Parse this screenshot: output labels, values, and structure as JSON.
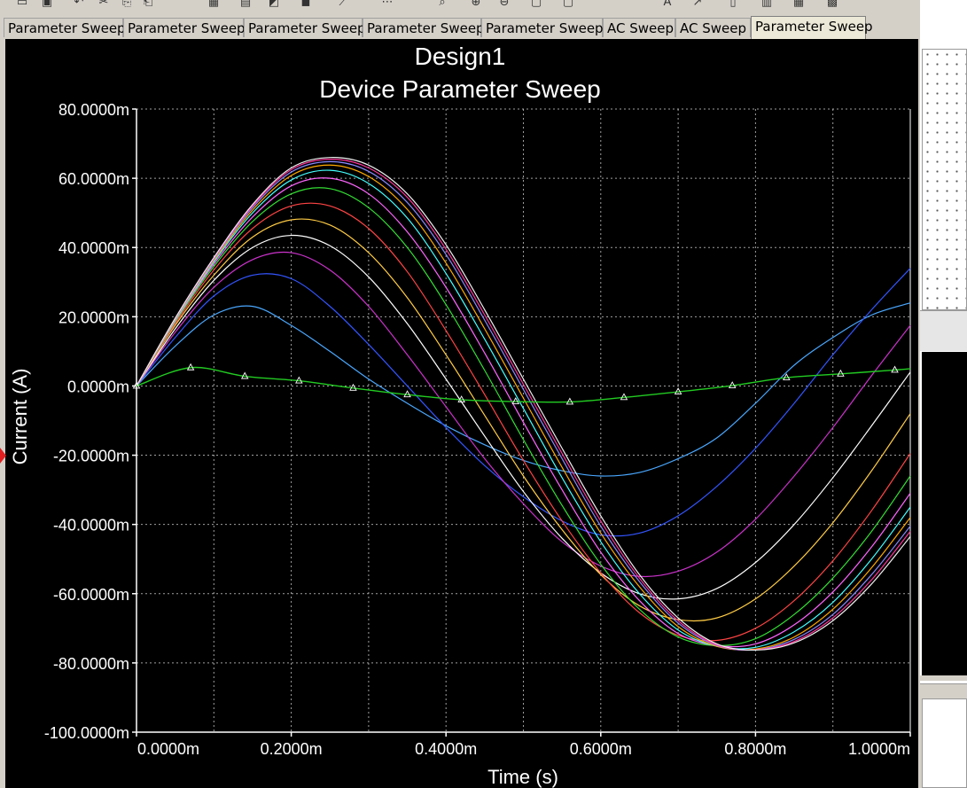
{
  "tabs": [
    {
      "label": "Parameter Sweep",
      "active": false
    },
    {
      "label": "Parameter Sweep",
      "active": false
    },
    {
      "label": "Parameter Sweep",
      "active": false
    },
    {
      "label": "Parameter Sweep",
      "active": false
    },
    {
      "label": "Parameter Sweep",
      "active": false
    },
    {
      "label": "AC Sweep",
      "active": false
    },
    {
      "label": "AC Sweep",
      "active": false
    },
    {
      "label": "Parameter Sweep",
      "active": true
    }
  ],
  "toolbar_icons": [
    "open-icon",
    "save-icon",
    "undo-icon",
    "cut-icon",
    "copy-icon",
    "paste-icon",
    "grid-icon",
    "legend-icon",
    "cursor-icon",
    "select-icon",
    "trace-icon",
    "markers-icon",
    "zoom-icon",
    "zoom-in-icon",
    "zoom-out-icon",
    "export-icon",
    "print-icon",
    "text-icon",
    "properties-icon",
    "overlay-icon",
    "ptr-icon",
    "table-icon",
    "chart-icon"
  ],
  "colors": {
    "plot_bg": "#000000",
    "grid": "#c8c8c8",
    "text": "#ffffff"
  },
  "chart_data": {
    "type": "line",
    "title": "Design1",
    "subtitle": "Device Parameter Sweep",
    "xlabel": "Time (s)",
    "ylabel": "Current (A)",
    "xlim": [
      0,
      1.0
    ],
    "ylim": [
      -100,
      80
    ],
    "x_unit_scale": "milliseconds",
    "y_unit_scale": "milliamps",
    "xticks": [
      0,
      0.2,
      0.4,
      0.6,
      0.8,
      1.0
    ],
    "xtick_labels": [
      "0.0000m",
      "0.2000m",
      "0.4000m",
      "0.6000m",
      "0.8000m",
      "1.0000m"
    ],
    "yticks": [
      80,
      60,
      40,
      20,
      0,
      -20,
      -40,
      -60,
      -80,
      -100
    ],
    "ytick_labels": [
      "80.0000m",
      "60.0000m",
      "40.0000m",
      "20.0000m",
      "0.0000m",
      "-20.0000m",
      "-40.0000m",
      "-60.0000m",
      "-80.0000m",
      "-100.0000m"
    ],
    "grid": true,
    "grid_style": "dotted",
    "marker_series": {
      "color": "#22cc22",
      "marker": "triangle",
      "x": [
        0,
        0.07,
        0.14,
        0.21,
        0.28,
        0.35,
        0.42,
        0.49,
        0.56,
        0.63,
        0.7,
        0.77,
        0.84,
        0.91,
        0.98,
        1.0
      ],
      "y": [
        0,
        5.3,
        2.8,
        1.5,
        -0.6,
        -2.5,
        -4.0,
        -4.5,
        -4.6,
        -3.3,
        -1.7,
        0.1,
        2.4,
        3.5,
        4.6,
        5.0
      ]
    },
    "series": [
      {
        "color": "#4aa8ff",
        "x": [
          0,
          0.05,
          0.1,
          0.15,
          0.2,
          0.25,
          0.3,
          0.35,
          0.4,
          0.45,
          0.5,
          0.55,
          0.6,
          0.65,
          0.7,
          0.75,
          0.8,
          0.85,
          0.9,
          0.95,
          1.0
        ],
        "y": [
          0,
          11.5,
          20.5,
          23.0,
          17.5,
          10.0,
          2.0,
          -5.0,
          -11.5,
          -17.0,
          -21.5,
          -24.5,
          -26.0,
          -25.0,
          -21.0,
          -15.0,
          -5.0,
          6.0,
          14.0,
          20.5,
          24.0
        ]
      },
      {
        "color": "#3355ff",
        "x": [
          0,
          0.05,
          0.1,
          0.15,
          0.2,
          0.25,
          0.3,
          0.35,
          0.4,
          0.45,
          0.5,
          0.55,
          0.6,
          0.65,
          0.7,
          0.75,
          0.8,
          0.85,
          0.9,
          0.95,
          1.0
        ],
        "y": [
          0,
          14.0,
          26.0,
          32.0,
          31.0,
          23.0,
          12.0,
          0,
          -12.0,
          -23.0,
          -32.0,
          -39.0,
          -43.0,
          -42.5,
          -37.5,
          -29.0,
          -18.0,
          -5.0,
          9.0,
          22.0,
          34.0
        ]
      },
      {
        "color": "#cc33cc",
        "x": [
          0,
          0.05,
          0.1,
          0.15,
          0.2,
          0.25,
          0.3,
          0.35,
          0.4,
          0.45,
          0.5,
          0.55,
          0.6,
          0.65,
          0.7,
          0.75,
          0.8,
          0.85,
          0.9,
          0.95,
          1.0
        ],
        "y": [
          0,
          15.5,
          28.5,
          36.5,
          38.5,
          33.5,
          23.0,
          9.0,
          -6.0,
          -21.0,
          -34.0,
          -45.0,
          -52.0,
          -55.0,
          -53.5,
          -48.0,
          -38.5,
          -26.0,
          -12.0,
          3.0,
          17.5
        ]
      },
      {
        "color": "#ffffff",
        "x": [
          0,
          0.05,
          0.1,
          0.15,
          0.2,
          0.25,
          0.3,
          0.35,
          0.4,
          0.45,
          0.5,
          0.55,
          0.6,
          0.65,
          0.7,
          0.75,
          0.8,
          0.85,
          0.9,
          0.95,
          1.0
        ],
        "y": [
          0,
          16.5,
          30.5,
          40.0,
          43.5,
          40.5,
          31.5,
          18.0,
          2.0,
          -14.5,
          -30.5,
          -44.0,
          -54.0,
          -60.0,
          -61.5,
          -58.5,
          -51.0,
          -40.0,
          -26.5,
          -11.5,
          4.0
        ]
      },
      {
        "color": "#ffcc44",
        "x": [
          0,
          0.05,
          0.1,
          0.15,
          0.2,
          0.25,
          0.3,
          0.35,
          0.4,
          0.45,
          0.5,
          0.55,
          0.6,
          0.65,
          0.7,
          0.75,
          0.8,
          0.85,
          0.9,
          0.95,
          1.0
        ],
        "y": [
          0,
          17.5,
          32.0,
          43.0,
          48.0,
          46.5,
          38.5,
          25.5,
          9.0,
          -8.5,
          -26.0,
          -41.5,
          -54.5,
          -63.5,
          -67.5,
          -67.0,
          -61.5,
          -52.0,
          -39.5,
          -24.5,
          -8.0
        ]
      },
      {
        "color": "#ff4444",
        "x": [
          0,
          0.05,
          0.1,
          0.15,
          0.2,
          0.25,
          0.3,
          0.35,
          0.4,
          0.45,
          0.5,
          0.55,
          0.6,
          0.65,
          0.7,
          0.75,
          0.8,
          0.85,
          0.9,
          0.95,
          1.0
        ],
        "y": [
          0,
          18.0,
          33.5,
          45.5,
          52.0,
          52.0,
          45.5,
          33.0,
          16.0,
          -2.5,
          -21.5,
          -39.0,
          -54.0,
          -65.5,
          -72.0,
          -73.5,
          -70.0,
          -62.0,
          -50.5,
          -36.0,
          -19.5
        ]
      },
      {
        "color": "#33dd33",
        "x": [
          0,
          0.05,
          0.1,
          0.15,
          0.2,
          0.25,
          0.3,
          0.35,
          0.4,
          0.45,
          0.5,
          0.55,
          0.6,
          0.65,
          0.7,
          0.75,
          0.8,
          0.85,
          0.9,
          0.95,
          1.0
        ],
        "y": [
          0,
          18.5,
          34.5,
          47.5,
          55.5,
          57.0,
          51.5,
          40.0,
          23.5,
          4.5,
          -15.5,
          -34.5,
          -51.5,
          -64.5,
          -72.5,
          -75.0,
          -73.0,
          -66.0,
          -55.5,
          -42.0,
          -26.0
        ]
      },
      {
        "color": "#ff66ff",
        "x": [
          0,
          0.05,
          0.1,
          0.15,
          0.2,
          0.25,
          0.3,
          0.35,
          0.4,
          0.45,
          0.5,
          0.55,
          0.6,
          0.65,
          0.7,
          0.75,
          0.8,
          0.85,
          0.9,
          0.95,
          1.0
        ],
        "y": [
          0,
          18.8,
          35.2,
          48.8,
          57.8,
          60.0,
          55.5,
          44.5,
          28.5,
          9.5,
          -10.5,
          -30.0,
          -48.0,
          -62.0,
          -71.5,
          -75.0,
          -74.5,
          -69.0,
          -59.5,
          -46.5,
          -31.0
        ]
      },
      {
        "color": "#44ffff",
        "x": [
          0,
          0.05,
          0.1,
          0.15,
          0.2,
          0.25,
          0.3,
          0.35,
          0.4,
          0.45,
          0.5,
          0.55,
          0.6,
          0.65,
          0.7,
          0.75,
          0.8,
          0.85,
          0.9,
          0.95,
          1.0
        ],
        "y": [
          0,
          19.0,
          35.8,
          50.0,
          59.5,
          62.3,
          58.5,
          48.5,
          32.5,
          13.5,
          -6.5,
          -26.5,
          -45.0,
          -60.0,
          -70.5,
          -75.2,
          -75.5,
          -71.0,
          -62.5,
          -50.0,
          -35.0
        ]
      },
      {
        "color": "#ffaa00",
        "x": [
          0,
          0.05,
          0.1,
          0.15,
          0.2,
          0.25,
          0.3,
          0.35,
          0.4,
          0.45,
          0.5,
          0.55,
          0.6,
          0.65,
          0.7,
          0.75,
          0.8,
          0.85,
          0.9,
          0.95,
          1.0
        ],
        "y": [
          0,
          19.2,
          36.2,
          50.8,
          60.8,
          63.8,
          60.5,
          51.0,
          35.5,
          16.5,
          -3.5,
          -23.5,
          -42.5,
          -58.0,
          -69.5,
          -75.2,
          -76.0,
          -72.5,
          -64.5,
          -52.5,
          -38.0
        ]
      },
      {
        "color": "#8888ff",
        "x": [
          0,
          0.05,
          0.1,
          0.15,
          0.2,
          0.25,
          0.3,
          0.35,
          0.4,
          0.45,
          0.5,
          0.55,
          0.6,
          0.65,
          0.7,
          0.75,
          0.8,
          0.85,
          0.9,
          0.95,
          1.0
        ],
        "y": [
          0,
          19.4,
          36.6,
          51.5,
          61.8,
          64.8,
          62.0,
          53.0,
          38.0,
          19.0,
          -1.0,
          -21.0,
          -40.5,
          -56.5,
          -68.5,
          -75.0,
          -76.2,
          -73.2,
          -66.0,
          -54.5,
          -40.5
        ]
      },
      {
        "color": "#ff3399",
        "x": [
          0,
          0.05,
          0.1,
          0.15,
          0.2,
          0.25,
          0.3,
          0.35,
          0.4,
          0.45,
          0.5,
          0.55,
          0.6,
          0.65,
          0.7,
          0.75,
          0.8,
          0.85,
          0.9,
          0.95,
          1.0
        ],
        "y": [
          0,
          19.5,
          36.9,
          52.0,
          62.5,
          65.5,
          63.0,
          54.5,
          39.5,
          20.5,
          0.5,
          -19.5,
          -39.0,
          -55.5,
          -67.8,
          -74.8,
          -76.2,
          -73.8,
          -67.0,
          -56.0,
          -42.0
        ]
      },
      {
        "color": "#eeeeee",
        "x": [
          0,
          0.05,
          0.1,
          0.15,
          0.2,
          0.25,
          0.3,
          0.35,
          0.4,
          0.45,
          0.5,
          0.55,
          0.6,
          0.65,
          0.7,
          0.75,
          0.8,
          0.85,
          0.9,
          0.95,
          1.0
        ],
        "y": [
          0,
          19.6,
          37.1,
          52.4,
          63.0,
          66.0,
          63.8,
          55.5,
          40.8,
          22.0,
          2.0,
          -18.0,
          -37.5,
          -54.5,
          -67.0,
          -74.5,
          -76.3,
          -74.2,
          -67.8,
          -57.2,
          -43.5
        ]
      }
    ]
  }
}
